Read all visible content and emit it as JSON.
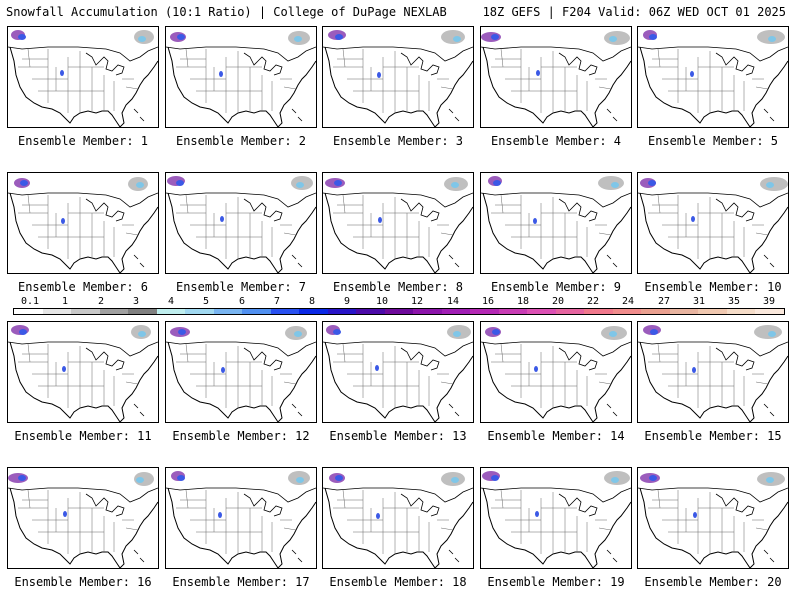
{
  "header": {
    "left_title": "Snowfall Accumulation (10:1 Ratio) | College of DuPage NEXLAB",
    "right_title": "18Z GEFS | F204 Valid: 06Z WED OCT 01 2025"
  },
  "panel_label_prefix": "Ensemble Member: ",
  "members": [
    1,
    2,
    3,
    4,
    5,
    6,
    7,
    8,
    9,
    10,
    11,
    12,
    13,
    14,
    15,
    16,
    17,
    18,
    19,
    20
  ],
  "colorbar": {
    "labels": [
      "0.1",
      "1",
      "2",
      "3",
      "4",
      "5",
      "6",
      "7",
      "8",
      "9",
      "10",
      "12",
      "14",
      "16",
      "18",
      "20",
      "22",
      "24",
      "27",
      "31",
      "35",
      "39"
    ],
    "colors": [
      "#ffffff",
      "#e6e6e6",
      "#c8c8c8",
      "#a0a0a0",
      "#808080",
      "#bfeeee",
      "#a0d8f0",
      "#78b4f0",
      "#5090f0",
      "#2850f0",
      "#0a28e6",
      "#2814c8",
      "#4b0aa8",
      "#6e0a9b",
      "#8c14aa",
      "#a01eb4",
      "#b428b4",
      "#c83cb4",
      "#dc50b4",
      "#e664a0",
      "#f0788c",
      "#f08c8c",
      "#eaa090",
      "#e8b4a0",
      "#f0c8b0",
      "#f5dcc8",
      "#fae8dc"
    ]
  }
}
